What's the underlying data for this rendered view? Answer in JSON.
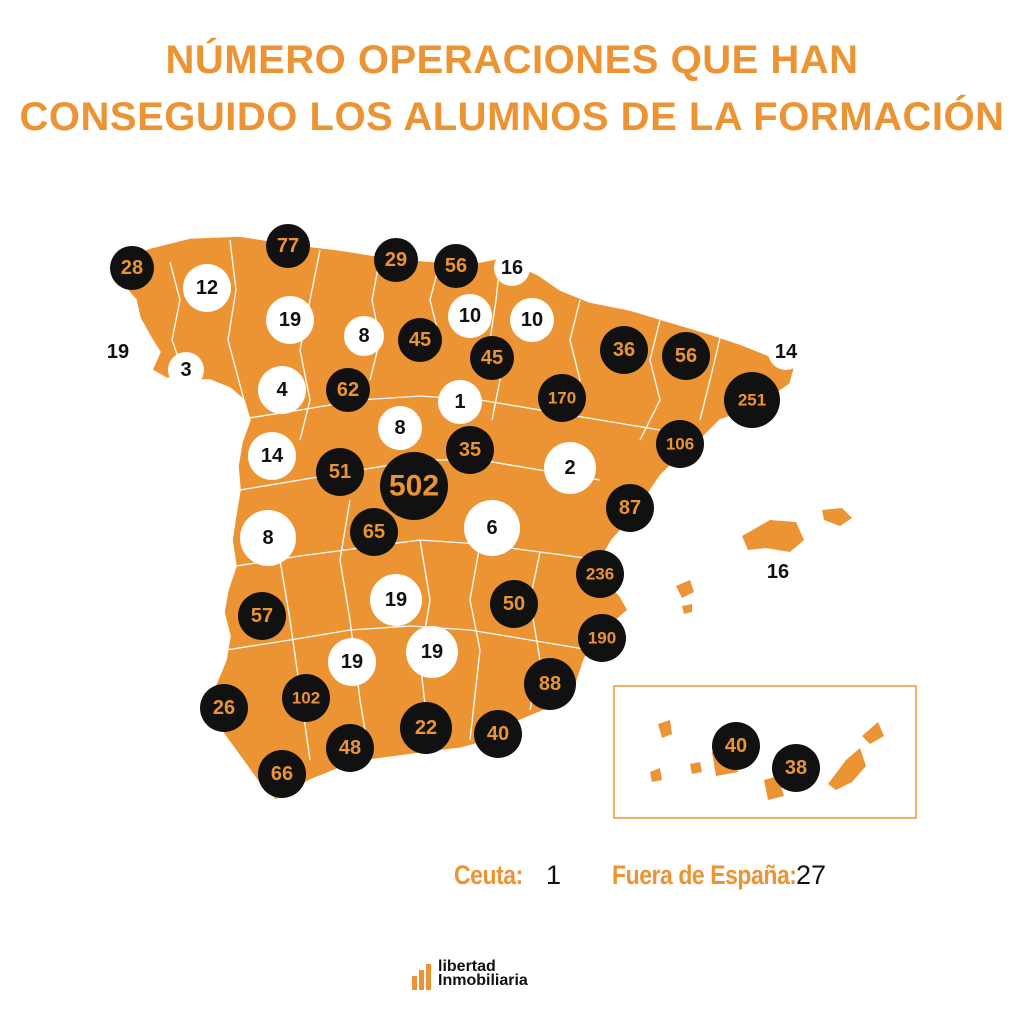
{
  "title": {
    "line1": "NÚMERO OPERACIONES QUE HAN",
    "line2": "CONSEGUIDO LOS ALUMNOS DE LA FORMACIÓN"
  },
  "colors": {
    "accent": "#ec9433",
    "dark": "#111111",
    "light": "#ffffff"
  },
  "markers": [
    {
      "value": "28",
      "style": "dark"
    },
    {
      "value": "77",
      "style": "dark"
    },
    {
      "value": "29",
      "style": "dark"
    },
    {
      "value": "56",
      "style": "dark"
    },
    {
      "value": "16",
      "style": "light"
    },
    {
      "value": "12",
      "style": "light"
    },
    {
      "value": "19",
      "style": "light"
    },
    {
      "value": "8",
      "style": "light"
    },
    {
      "value": "45",
      "style": "dark"
    },
    {
      "value": "10",
      "style": "light"
    },
    {
      "value": "10",
      "style": "light"
    },
    {
      "value": "19",
      "style": "light"
    },
    {
      "value": "3",
      "style": "light"
    },
    {
      "value": "4",
      "style": "light"
    },
    {
      "value": "62",
      "style": "dark"
    },
    {
      "value": "45",
      "style": "dark"
    },
    {
      "value": "1",
      "style": "light"
    },
    {
      "value": "36",
      "style": "dark"
    },
    {
      "value": "56",
      "style": "dark"
    },
    {
      "value": "14",
      "style": "light"
    },
    {
      "value": "170",
      "style": "dark"
    },
    {
      "value": "251",
      "style": "dark"
    },
    {
      "value": "8",
      "style": "light"
    },
    {
      "value": "14",
      "style": "light"
    },
    {
      "value": "51",
      "style": "dark"
    },
    {
      "value": "502",
      "style": "dark"
    },
    {
      "value": "35",
      "style": "dark"
    },
    {
      "value": "2",
      "style": "light"
    },
    {
      "value": "106",
      "style": "dark"
    },
    {
      "value": "87",
      "style": "dark"
    },
    {
      "value": "8",
      "style": "light"
    },
    {
      "value": "65",
      "style": "dark"
    },
    {
      "value": "6",
      "style": "light"
    },
    {
      "value": "236",
      "style": "dark"
    },
    {
      "value": "16",
      "style": "light"
    },
    {
      "value": "57",
      "style": "dark"
    },
    {
      "value": "19",
      "style": "light"
    },
    {
      "value": "50",
      "style": "dark"
    },
    {
      "value": "190",
      "style": "dark"
    },
    {
      "value": "19",
      "style": "light"
    },
    {
      "value": "19",
      "style": "light"
    },
    {
      "value": "26",
      "style": "dark"
    },
    {
      "value": "102",
      "style": "dark"
    },
    {
      "value": "88",
      "style": "dark"
    },
    {
      "value": "22",
      "style": "dark"
    },
    {
      "value": "40",
      "style": "dark"
    },
    {
      "value": "48",
      "style": "dark"
    },
    {
      "value": "66",
      "style": "dark"
    },
    {
      "value": "40",
      "style": "dark"
    },
    {
      "value": "38",
      "style": "dark"
    }
  ],
  "footer": {
    "ceuta_label": "Ceuta:",
    "ceuta_value": "1",
    "fuera_label": "Fuera de España:",
    "fuera_value": "27"
  },
  "logo": {
    "line1": "libertad",
    "line2": "Inmobiliaria"
  }
}
